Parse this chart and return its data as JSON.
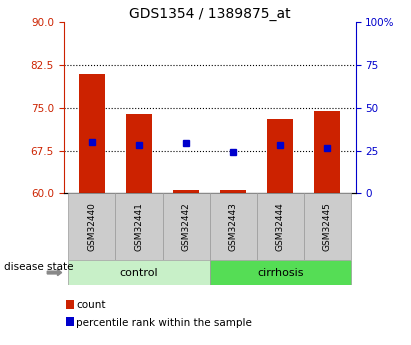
{
  "title": "GDS1354 / 1389875_at",
  "samples": [
    "GSM32440",
    "GSM32441",
    "GSM32442",
    "GSM32443",
    "GSM32444",
    "GSM32445"
  ],
  "bar_bottoms": [
    60,
    60,
    60,
    60,
    60,
    60
  ],
  "bar_tops": [
    81.0,
    74.0,
    60.5,
    60.5,
    73.0,
    74.5
  ],
  "blue_markers": [
    69.0,
    68.5,
    68.8,
    67.3,
    68.5,
    68.0
  ],
  "ylim": [
    60,
    90
  ],
  "yticks_left": [
    60,
    67.5,
    75,
    82.5,
    90
  ],
  "yticks_right_vals": [
    0,
    25,
    50,
    75,
    100
  ],
  "yticks_right_labels": [
    "0",
    "25",
    "50",
    "75",
    "100%"
  ],
  "hlines": [
    82.5,
    75,
    67.5
  ],
  "bar_color": "#cc2200",
  "marker_color": "#0000cc",
  "bar_width": 0.55,
  "ctrl_color": "#c8f0c8",
  "cirr_color": "#55dd55",
  "box_color": "#cccccc",
  "legend_items": [
    "count",
    "percentile rank within the sample"
  ],
  "title_fontsize": 10,
  "tick_fontsize": 7.5
}
